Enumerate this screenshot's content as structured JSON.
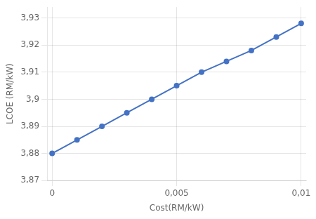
{
  "chart_data": {
    "type": "line",
    "x": [
      0.0,
      0.001,
      0.002,
      0.003,
      0.004,
      0.005,
      0.006,
      0.007,
      0.008,
      0.009,
      0.01
    ],
    "values": [
      3.88,
      3.885,
      3.89,
      3.895,
      3.9,
      3.905,
      3.91,
      3.914,
      3.918,
      3.923,
      3.928
    ],
    "color": "#4472C4",
    "marker": "circle",
    "xlabel": "Cost(RM/kW)",
    "ylabel": "LCOE (RM/kW)",
    "xlim": [
      -0.0002,
      0.0102
    ],
    "ylim": [
      3.87,
      3.934
    ],
    "xticks": [
      0,
      {
        "value": 0.005,
        "label": "0,005"
      },
      {
        "value": 0.01,
        "label": "0,01"
      }
    ],
    "yticks": [
      {
        "value": 3.87,
        "label": "3,87"
      },
      {
        "value": 3.88,
        "label": "3,88"
      },
      {
        "value": 3.89,
        "label": "3,89"
      },
      {
        "value": 3.9,
        "label": "3,9"
      },
      {
        "value": 3.91,
        "label": "3,91"
      },
      {
        "value": 3.92,
        "label": "3,92"
      },
      {
        "value": 3.93,
        "label": "3,93"
      }
    ],
    "grid": true
  }
}
